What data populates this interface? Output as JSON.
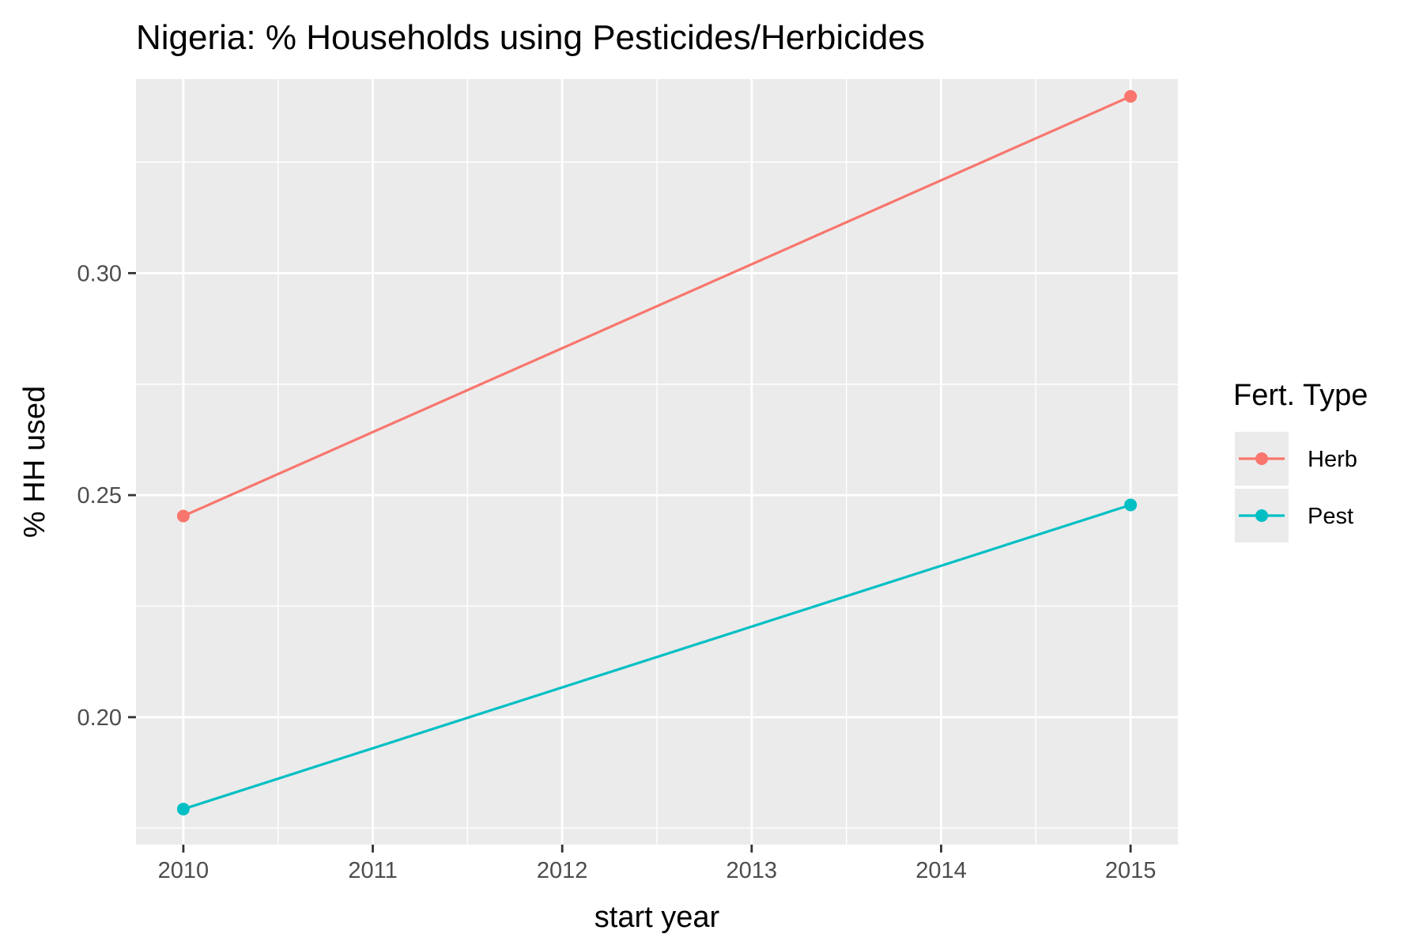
{
  "chart_data": {
    "type": "line",
    "title": "Nigeria: % Households using Pesticides/Herbicides",
    "xlabel": "start year",
    "ylabel": "% HH used",
    "x": [
      2010,
      2015
    ],
    "xlim": [
      2009.75,
      2015.25
    ],
    "xticks": [
      2010,
      2011,
      2012,
      2013,
      2014,
      2015
    ],
    "ylim": [
      0.1713,
      0.3437
    ],
    "yticks": [
      0.2,
      0.25,
      0.3
    ],
    "ytick_labels": [
      "0.20",
      "0.25",
      "0.30"
    ],
    "grid": true,
    "legend": {
      "title": "Fert. Type",
      "position": "right"
    },
    "series": [
      {
        "name": "Herb",
        "color": "#F8766D",
        "values": [
          0.2453,
          0.3398
        ]
      },
      {
        "name": "Pest",
        "color": "#00BFC4",
        "values": [
          0.1793,
          0.2478
        ]
      }
    ]
  }
}
